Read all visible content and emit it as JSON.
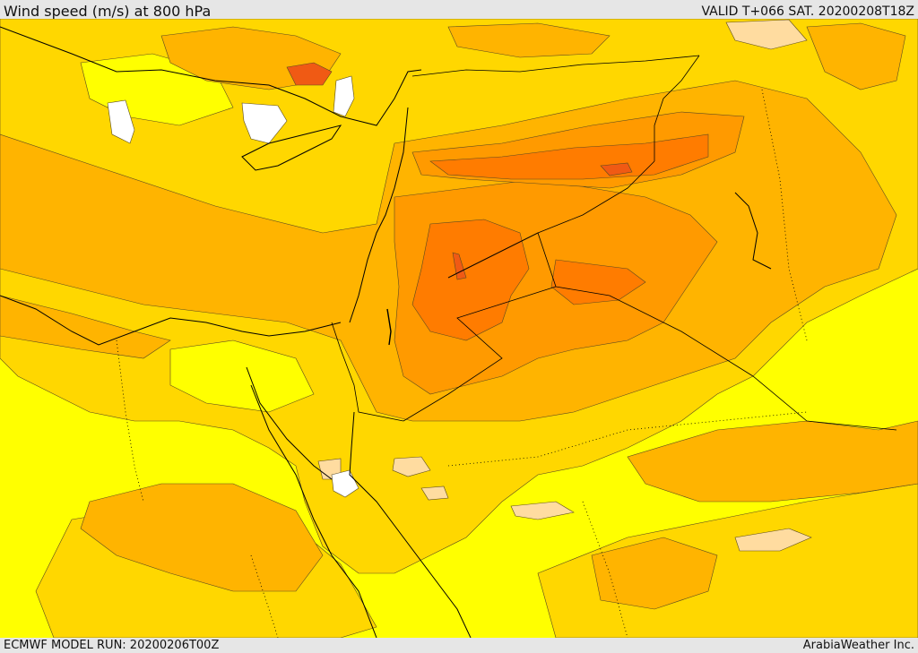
{
  "header": {
    "title": "Wind speed (m/s) at 800 hPa",
    "valid": "VALID T+066 SAT. 20200208T18Z"
  },
  "footer": {
    "model_run": "ECMWF MODEL RUN: 20200206T00Z",
    "credit": "ArabiaWeather Inc."
  },
  "map": {
    "field": "wind-speed",
    "palette": {
      "white": "#ffffff",
      "yellow": "#ffff00",
      "gold": "#ffd700",
      "amber": "#ffb400",
      "orange": "#ff9a00",
      "dark_orange": "#ff7c00",
      "red_orange": "#f05a14",
      "peach": "#ffdca0",
      "contour": "#5a4a20",
      "border": "#000000"
    }
  }
}
